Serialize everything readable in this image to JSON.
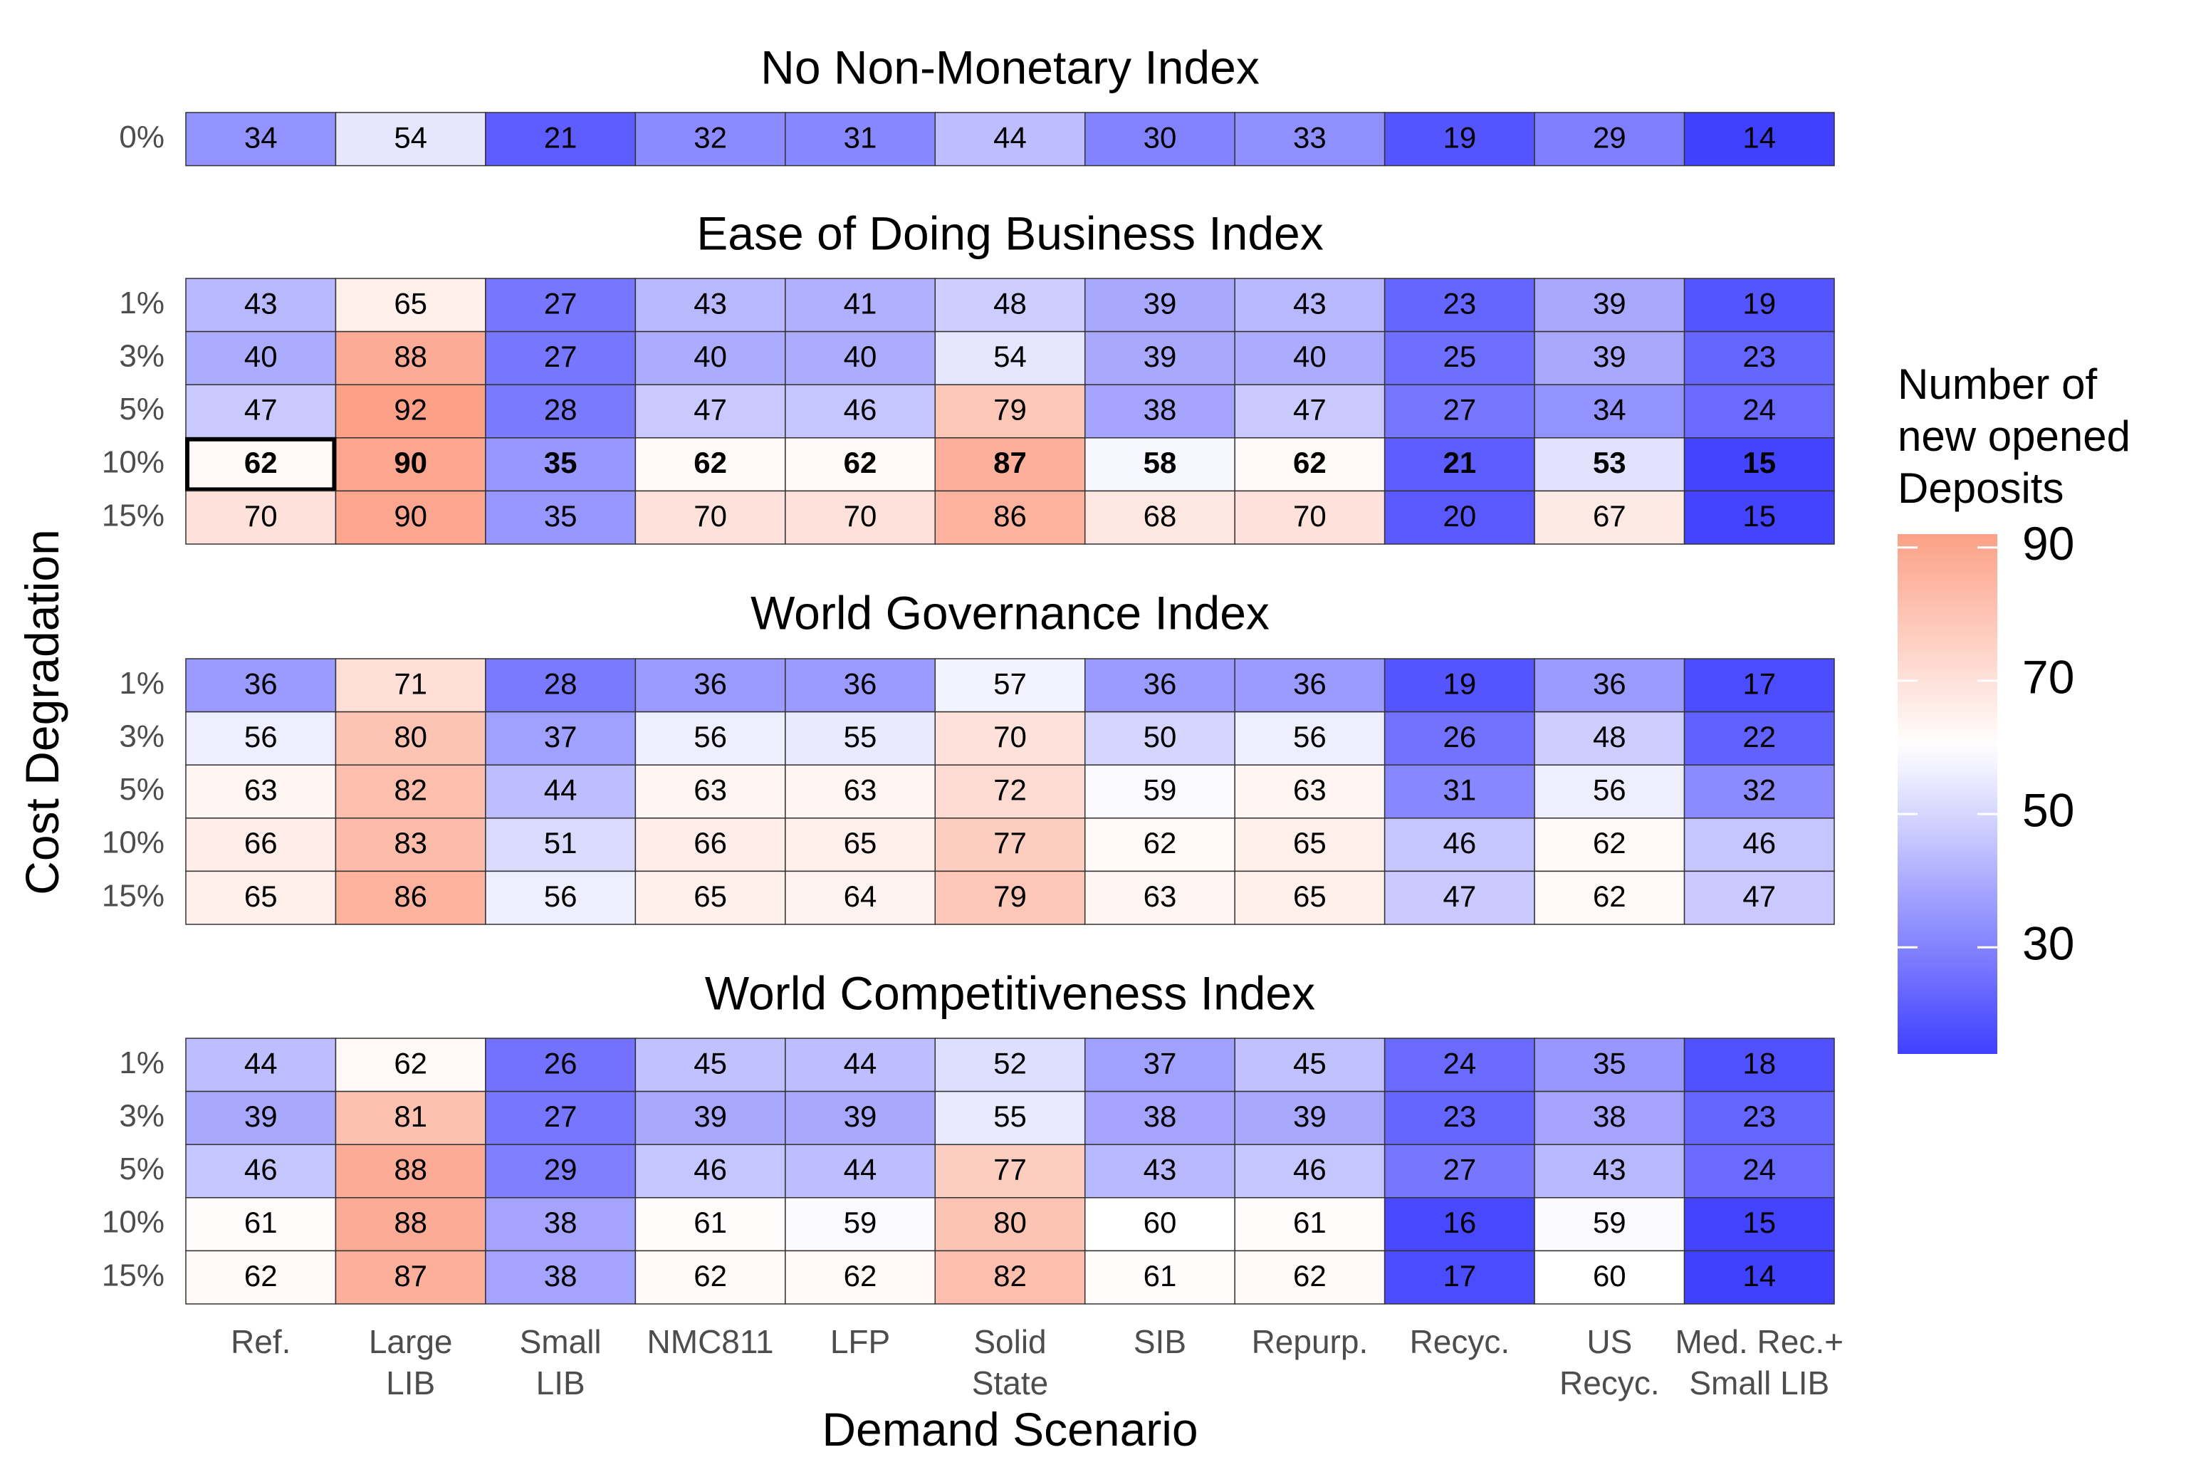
{
  "chart_data": {
    "type": "heatmap",
    "xlabel": "Demand Scenario",
    "ylabel": "Cost Degradation",
    "categories": [
      [
        "Ref."
      ],
      [
        "Large",
        "LIB"
      ],
      [
        "Small",
        "LIB"
      ],
      [
        "NMC811"
      ],
      [
        "LFP"
      ],
      [
        "Solid",
        "State"
      ],
      [
        "SIB"
      ],
      [
        "Repurp."
      ],
      [
        "Recyc."
      ],
      [
        "US",
        "Recyc."
      ],
      [
        "Med. Rec.+",
        "Small LIB"
      ]
    ],
    "legend": {
      "title": [
        "Number of",
        "new opened",
        "Deposits"
      ],
      "ticks": [
        30,
        50,
        70,
        90
      ],
      "range": [
        14,
        92
      ],
      "colors": {
        "low": "#4040ff",
        "mid": "#ffffff",
        "high": "#fca087"
      },
      "midpoint": 60
    },
    "colors": {
      "cell_border": "#333333",
      "text": "#000000",
      "axis_text": "#4d4d4d"
    },
    "panels": [
      {
        "title": "No Non-Monetary Index",
        "rows": [
          {
            "label": "0%",
            "values": [
              34,
              54,
              21,
              32,
              31,
              44,
              30,
              33,
              19,
              29,
              14
            ]
          }
        ]
      },
      {
        "title": "Ease of Doing Business Index",
        "rows": [
          {
            "label": "1%",
            "values": [
              43,
              65,
              27,
              43,
              41,
              48,
              39,
              43,
              23,
              39,
              19
            ]
          },
          {
            "label": "3%",
            "values": [
              40,
              88,
              27,
              40,
              40,
              54,
              39,
              40,
              25,
              39,
              23
            ]
          },
          {
            "label": "5%",
            "values": [
              47,
              92,
              28,
              47,
              46,
              79,
              38,
              47,
              27,
              34,
              24
            ]
          },
          {
            "label": "10%",
            "values": [
              62,
              90,
              35,
              62,
              62,
              87,
              58,
              62,
              21,
              53,
              15
            ],
            "bold": true,
            "highlight_col": 0
          },
          {
            "label": "15%",
            "values": [
              70,
              90,
              35,
              70,
              70,
              86,
              68,
              70,
              20,
              67,
              15
            ]
          }
        ]
      },
      {
        "title": "World Governance Index",
        "rows": [
          {
            "label": "1%",
            "values": [
              36,
              71,
              28,
              36,
              36,
              57,
              36,
              36,
              19,
              36,
              17
            ]
          },
          {
            "label": "3%",
            "values": [
              56,
              80,
              37,
              56,
              55,
              70,
              50,
              56,
              26,
              48,
              22
            ]
          },
          {
            "label": "5%",
            "values": [
              63,
              82,
              44,
              63,
              63,
              72,
              59,
              63,
              31,
              56,
              32
            ]
          },
          {
            "label": "10%",
            "values": [
              66,
              83,
              51,
              66,
              65,
              77,
              62,
              65,
              46,
              62,
              46
            ]
          },
          {
            "label": "15%",
            "values": [
              65,
              86,
              56,
              65,
              64,
              79,
              63,
              65,
              47,
              62,
              47
            ]
          }
        ]
      },
      {
        "title": "World Competitiveness Index",
        "rows": [
          {
            "label": "1%",
            "values": [
              44,
              62,
              26,
              45,
              44,
              52,
              37,
              45,
              24,
              35,
              18
            ]
          },
          {
            "label": "3%",
            "values": [
              39,
              81,
              27,
              39,
              39,
              55,
              38,
              39,
              23,
              38,
              23
            ]
          },
          {
            "label": "5%",
            "values": [
              46,
              88,
              29,
              46,
              44,
              77,
              43,
              46,
              27,
              43,
              24
            ]
          },
          {
            "label": "10%",
            "values": [
              61,
              88,
              38,
              61,
              59,
              80,
              60,
              61,
              16,
              59,
              15
            ]
          },
          {
            "label": "15%",
            "values": [
              62,
              87,
              38,
              62,
              62,
              82,
              61,
              62,
              17,
              60,
              14
            ]
          }
        ]
      }
    ]
  }
}
